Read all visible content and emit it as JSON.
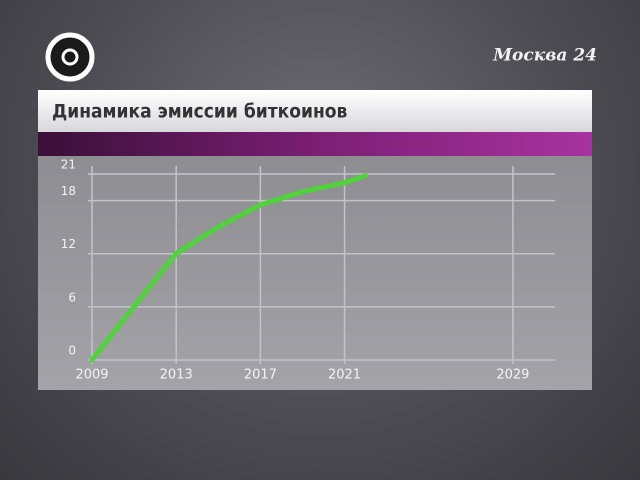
{
  "channel": "Москва 24",
  "chart_data": {
    "type": "line",
    "title": "Динамика эмиссии биткоинов",
    "x": [
      2009,
      2010,
      2011,
      2012,
      2013,
      2015,
      2017,
      2019,
      2021,
      2022
    ],
    "series": [
      {
        "name": null,
        "color": "#4fd23a",
        "values": [
          0,
          3,
          6,
          9,
          12,
          15,
          17.5,
          19,
          20,
          20.8
        ]
      }
    ],
    "xlim": [
      2009,
      2031
    ],
    "xticks": [
      2009,
      2013,
      2017,
      2021,
      2029
    ],
    "ylim": [
      0,
      21
    ],
    "yticks": [
      0,
      6,
      12,
      18,
      21
    ],
    "grid": true
  }
}
